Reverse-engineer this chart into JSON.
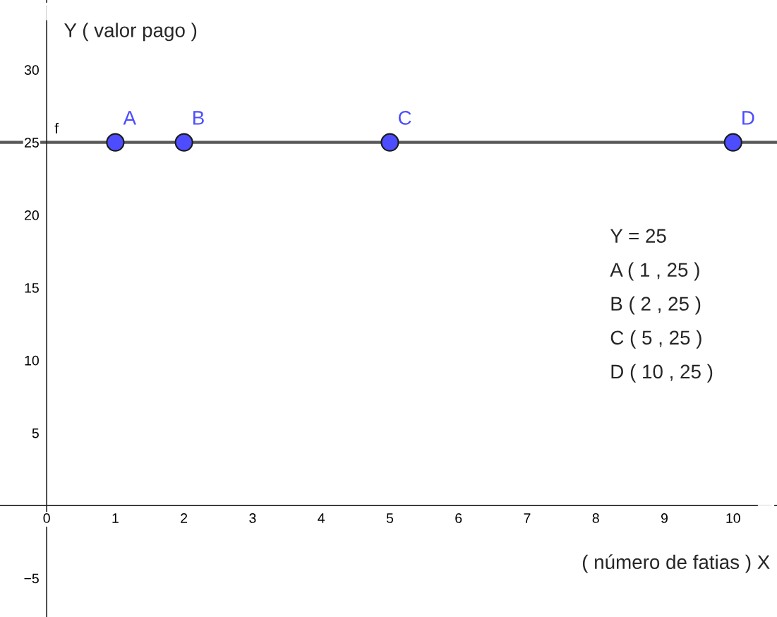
{
  "chart_data": {
    "type": "scatter",
    "xlabel": "( número de fatias ) X",
    "ylabel": "Y ( valor pago )",
    "x": [
      1,
      2,
      5,
      10
    ],
    "values": [
      25,
      25,
      25,
      25
    ],
    "color": "#4d4dff",
    "marker": "circle",
    "xlim": [
      -0.68,
      10.64
    ],
    "ylim": [
      -7.67,
      34.8
    ],
    "xticks": [
      0,
      1,
      2,
      3,
      4,
      5,
      6,
      7,
      8,
      9,
      10
    ],
    "yticks": [
      {
        "value": -5,
        "label": "−5"
      },
      5,
      10,
      15,
      20,
      25,
      30
    ],
    "grid": false,
    "ref_lines": [
      {
        "axis": "y",
        "value": 25,
        "label": "f",
        "color": "#595959"
      }
    ],
    "annotations": [
      {
        "text": "A",
        "x": 1,
        "y": 25
      },
      {
        "text": "B",
        "x": 2,
        "y": 25
      },
      {
        "text": "C",
        "x": 5,
        "y": 25
      },
      {
        "text": "D",
        "x": 10,
        "y": 25
      },
      "Y = 25",
      "A ( 1 , 25 )",
      "B ( 2 , 25 )",
      "C ( 5 , 25 )",
      "D ( 10 , 25 )"
    ]
  }
}
